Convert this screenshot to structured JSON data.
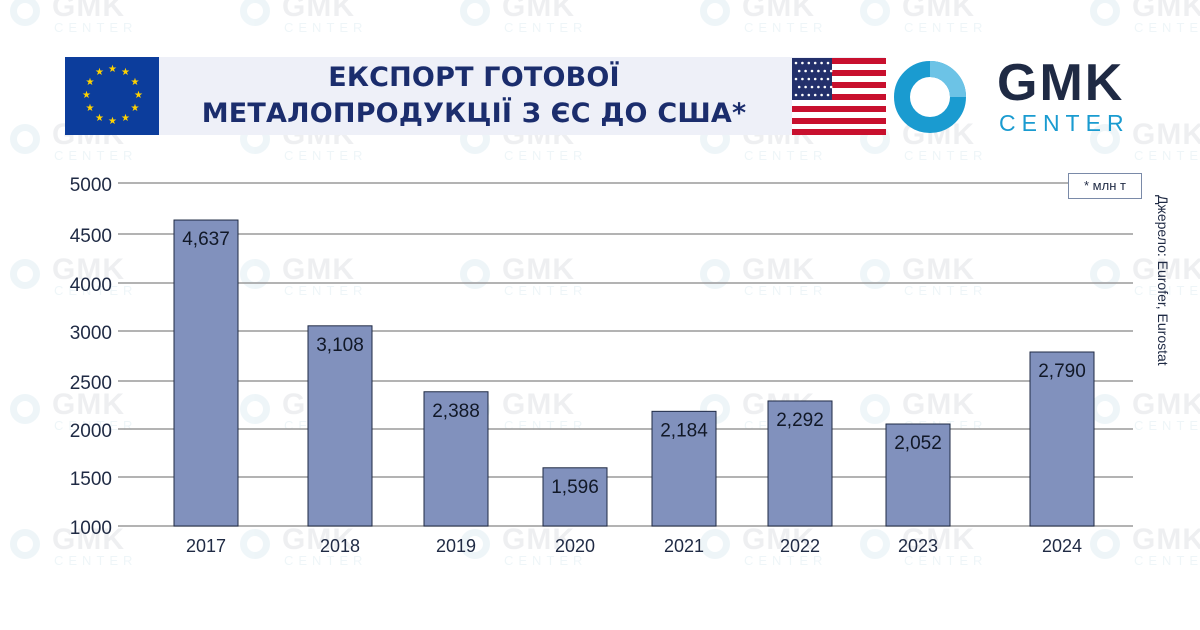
{
  "header": {
    "title_line1": "ЕКСПОРТ ГОТОВОЇ",
    "title_line2": "МЕТАЛОПРОДУКЦІЇ З ЄС ДО США*",
    "eu_flag_icon": "eu-flag-icon",
    "us_flag_icon": "us-flag-icon"
  },
  "logo": {
    "name": "GMK",
    "sub": "CENTER",
    "ring_color": "#1a9bd0",
    "text_color": "#1f2a44"
  },
  "watermark": {
    "text": "GMK",
    "sub": "CENTER"
  },
  "unit_note": "* млн т",
  "source": "Джерело: Eurofer, Eurostat",
  "colors": {
    "bar": "#8191bd",
    "bar_stroke": "#1f2a44",
    "grid": "#9a9a9a",
    "title": "#1b2d6d"
  },
  "chart_data": {
    "type": "bar",
    "categories": [
      "2017",
      "2018",
      "2019",
      "2020",
      "2021",
      "2022",
      "2023",
      "2024"
    ],
    "values": [
      4637,
      3108,
      2388,
      1596,
      2184,
      2292,
      2052,
      2790
    ],
    "value_labels": [
      "4,637",
      "3,108",
      "2,388",
      "1,596",
      "2,184",
      "2,292",
      "2,052",
      "2,790"
    ],
    "y_ticks": [
      {
        "value": 5000,
        "label": "5000"
      },
      {
        "value": 4500,
        "label": "4500"
      },
      {
        "value": 4000,
        "label": "4000"
      },
      {
        "value": 3000,
        "label": "3000"
      },
      {
        "value": 2500,
        "label": "2500"
      },
      {
        "value": 2000,
        "label": "2000"
      },
      {
        "value": 1500,
        "label": "1500"
      },
      {
        "value": 1000,
        "label": "1000"
      }
    ],
    "ylim": [
      1000,
      5000
    ],
    "grid": true,
    "legend": "none",
    "title": "ЕКСПОРТ ГОТОВОЇ МЕТАЛОПРОДУКЦІЇ З ЄС ДО США*",
    "xlabel": "",
    "ylabel": ""
  }
}
